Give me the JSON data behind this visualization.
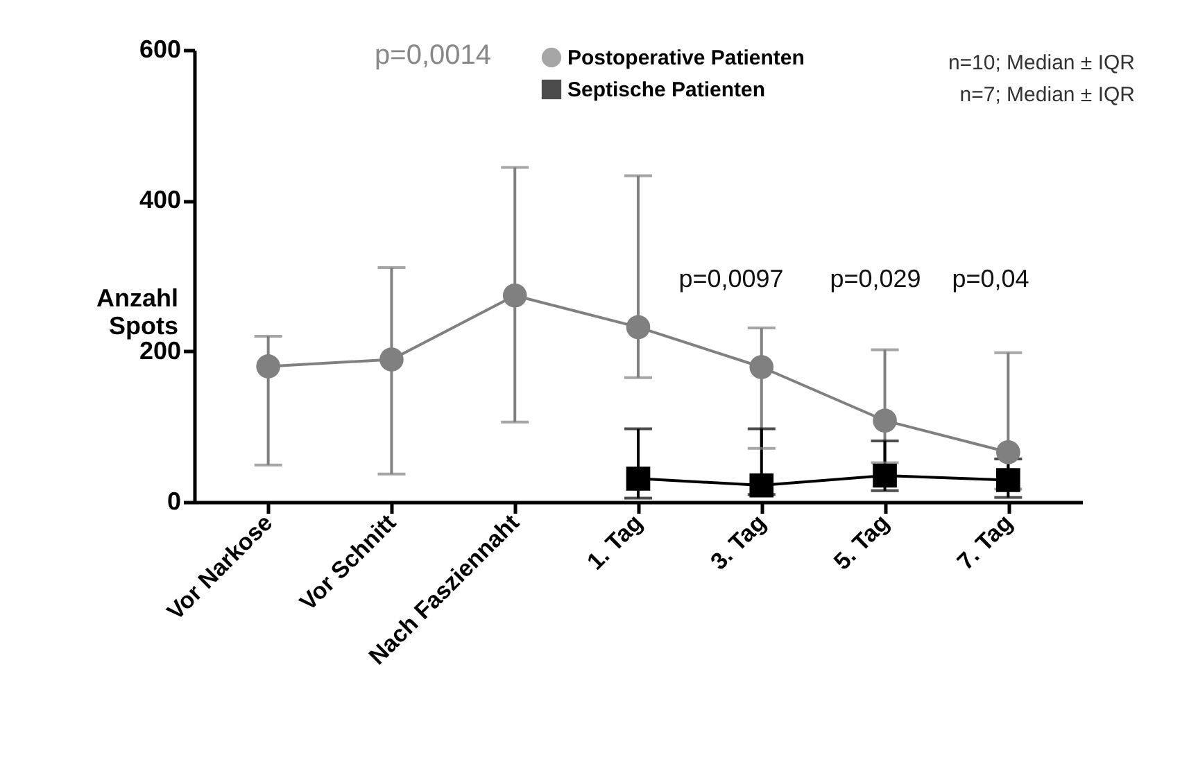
{
  "chart_data": {
    "type": "line",
    "ylabel": "Anzahl Spots",
    "categories": [
      "Vor Narkose",
      "Vor Schnitt",
      "Nach Fasziennaht",
      "1. Tag",
      "3. Tag",
      "5. Tag",
      "7. Tag"
    ],
    "series": [
      {
        "name": "Postoperative Patienten",
        "color": "#808080",
        "marker": "circle",
        "values": [
          180,
          189,
          274,
          232,
          179,
          108,
          66
        ],
        "errors": [
          [
            49,
            220
          ],
          [
            37,
            311
          ],
          [
            106,
            444
          ],
          [
            165,
            433
          ],
          [
            71,
            231
          ],
          [
            52,
            202
          ],
          [
            17,
            198
          ]
        ]
      },
      {
        "name": "Septische Patienten",
        "color": "#000000",
        "marker": "square",
        "values": [
          null,
          null,
          null,
          31,
          22,
          35,
          29
        ],
        "errors": [
          null,
          null,
          null,
          [
            5,
            97
          ],
          [
            10,
            97
          ],
          [
            15,
            81
          ],
          [
            6,
            57
          ]
        ]
      }
    ],
    "ylim": [
      0,
      600
    ],
    "yticks": [
      0,
      200,
      400,
      600
    ],
    "grid": false,
    "legend": "top right",
    "annotations": [
      "p=0,0014",
      "p=0,0097",
      "p=0,029",
      "p=0,04",
      "n=10; Median ± IQR",
      "n=7; Median ± IQR"
    ]
  }
}
